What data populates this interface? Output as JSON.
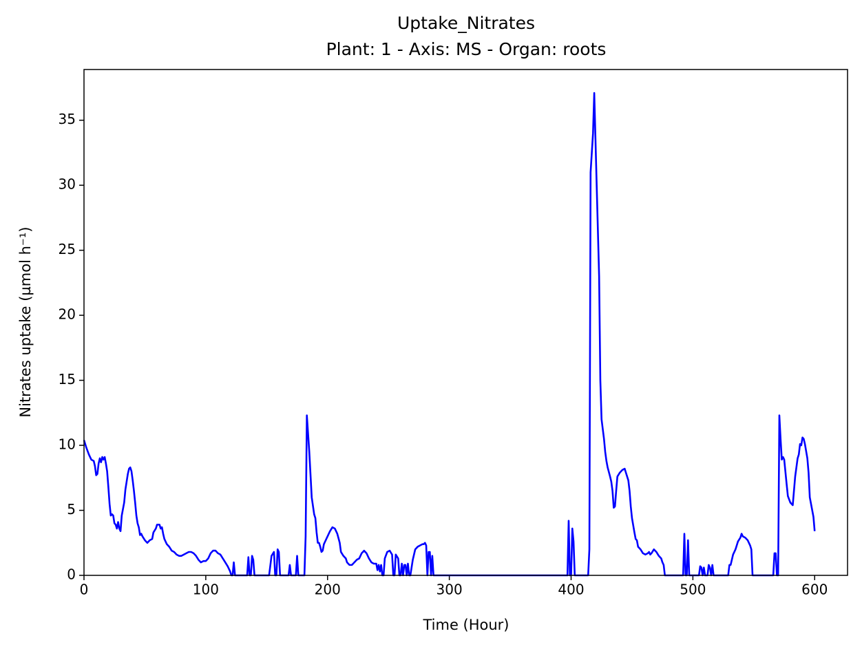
{
  "chart_data": {
    "type": "line",
    "title": "Uptake_Nitrates",
    "subtitle": "Plant: 1 - Axis: MS - Organ: roots",
    "x_label": "Time (Hour)",
    "y_label": "Nitrates uptake (µmol h⁻¹)",
    "color": "#0000ff",
    "xlim": [
      0,
      627
    ],
    "ylim": [
      0,
      38.9
    ],
    "xticks": [
      0,
      100,
      200,
      300,
      400,
      500,
      600
    ],
    "yticks": [
      0,
      5,
      10,
      15,
      20,
      25,
      30,
      35
    ],
    "grid": false,
    "x": [
      0,
      2,
      4,
      6,
      8,
      9,
      10,
      11,
      12,
      13,
      14,
      15,
      16,
      17,
      18,
      19,
      20,
      21,
      22,
      23,
      24,
      25,
      26,
      27,
      28,
      29,
      30,
      31,
      32,
      33,
      34,
      35,
      36,
      37,
      38,
      39,
      40,
      41,
      42,
      43,
      44,
      45,
      46,
      47,
      48,
      50,
      52,
      54,
      56,
      57,
      59,
      60,
      62,
      63,
      64,
      65,
      66,
      68,
      70,
      72,
      74,
      76,
      78,
      80,
      82,
      84,
      86,
      88,
      90,
      92,
      94,
      96,
      98,
      100,
      102,
      104,
      106,
      108,
      110,
      112,
      114,
      116,
      118,
      120,
      121,
      122,
      123,
      124,
      134,
      135,
      136,
      137,
      138,
      139,
      140,
      152,
      154,
      156,
      157,
      158,
      159,
      160,
      161,
      168,
      169,
      170,
      174,
      175,
      176,
      180,
      181,
      182,
      183,
      185,
      187,
      189,
      190,
      191,
      192,
      193,
      194,
      195,
      196,
      197,
      198,
      200,
      202,
      204,
      206,
      208,
      210,
      211,
      213,
      215,
      216,
      218,
      220,
      222,
      224,
      226,
      228,
      230,
      232,
      234,
      236,
      238,
      240,
      241,
      242,
      243,
      244,
      245,
      246,
      247,
      249,
      251,
      253,
      254,
      255,
      256,
      258,
      259,
      260,
      261,
      262,
      263,
      264,
      265,
      266,
      267,
      268,
      270,
      272,
      274,
      276,
      278,
      279,
      280,
      281,
      282,
      283,
      284,
      285,
      286,
      287,
      290,
      397,
      398,
      399,
      400,
      401,
      402,
      403,
      414,
      415,
      416,
      418,
      419,
      421,
      423,
      424,
      425,
      427,
      428,
      429,
      430,
      432,
      433,
      434,
      435,
      436,
      437,
      438,
      440,
      442,
      444,
      445,
      447,
      448,
      449,
      450,
      452,
      453,
      454,
      455,
      457,
      459,
      461,
      463,
      464,
      465,
      466,
      468,
      470,
      472,
      474,
      475,
      476,
      477,
      492,
      493,
      494,
      495,
      496,
      497,
      505,
      506,
      507,
      508,
      509,
      510,
      512,
      513,
      514,
      515,
      516,
      517,
      529,
      530,
      531,
      533,
      535,
      537,
      539,
      540,
      541,
      543,
      545,
      547,
      548,
      549,
      566,
      567,
      568,
      569,
      570,
      571,
      572,
      573,
      574,
      575,
      577,
      578,
      580,
      582,
      584,
      586,
      587,
      588,
      589,
      590,
      591,
      592,
      594,
      595,
      596,
      598,
      599,
      600
    ],
    "values": [
      10.4,
      9.8,
      9.3,
      8.9,
      8.8,
      8.4,
      7.7,
      7.8,
      8.6,
      9.0,
      8.7,
      9.1,
      8.9,
      9.1,
      8.6,
      8.0,
      6.8,
      5.5,
      4.6,
      4.7,
      4.6,
      4.0,
      3.9,
      3.6,
      4.1,
      3.6,
      3.4,
      4.6,
      5.1,
      5.6,
      6.6,
      7.2,
      7.8,
      8.2,
      8.3,
      8.0,
      7.3,
      6.5,
      5.6,
      4.6,
      4.0,
      3.7,
      3.1,
      3.2,
      3.0,
      2.7,
      2.5,
      2.7,
      2.8,
      3.3,
      3.6,
      3.9,
      3.9,
      3.6,
      3.7,
      3.2,
      2.8,
      2.4,
      2.2,
      1.9,
      1.8,
      1.6,
      1.5,
      1.5,
      1.6,
      1.7,
      1.8,
      1.8,
      1.7,
      1.5,
      1.2,
      1.0,
      1.1,
      1.1,
      1.3,
      1.7,
      1.9,
      1.9,
      1.7,
      1.6,
      1.3,
      1.0,
      0.7,
      0.3,
      0,
      0,
      1.0,
      0,
      0,
      1.4,
      0,
      0,
      1.5,
      1.2,
      0,
      0,
      1.5,
      1.8,
      0,
      0,
      2.0,
      1.8,
      0,
      0,
      0.8,
      0,
      0,
      1.5,
      0,
      0,
      0,
      3.0,
      12.3,
      9.5,
      6.0,
      4.7,
      4.4,
      3.3,
      2.5,
      2.5,
      2.2,
      1.8,
      1.9,
      2.4,
      2.6,
      3.0,
      3.4,
      3.7,
      3.6,
      3.2,
      2.5,
      1.8,
      1.5,
      1.3,
      1.0,
      0.8,
      0.8,
      1.0,
      1.2,
      1.3,
      1.7,
      1.9,
      1.7,
      1.3,
      1.0,
      0.9,
      0.9,
      0.4,
      0.8,
      0.3,
      0.8,
      0,
      0,
      1.3,
      1.8,
      1.9,
      1.6,
      0,
      0,
      1.6,
      1.3,
      0,
      0,
      0.9,
      0,
      0.8,
      0.8,
      0,
      0.9,
      0,
      0,
      1.2,
      2.0,
      2.2,
      2.3,
      2.4,
      2.4,
      2.5,
      2.3,
      0,
      1.8,
      1.8,
      0,
      1.5,
      0,
      0,
      0,
      4.2,
      0,
      0,
      3.6,
      2.6,
      0,
      0,
      2.0,
      31,
      34,
      37.1,
      30,
      23,
      15,
      12,
      10.5,
      9.5,
      8.8,
      8.3,
      7.6,
      7.2,
      6.5,
      5.2,
      5.3,
      6.5,
      7.6,
      7.9,
      8.1,
      8.2,
      7.9,
      7.3,
      6.5,
      5.3,
      4.4,
      3.3,
      2.8,
      2.7,
      2.2,
      2.0,
      1.7,
      1.6,
      1.7,
      1.8,
      1.6,
      1.7,
      2.0,
      1.8,
      1.5,
      1.3,
      1.0,
      0.8,
      0,
      0,
      3.2,
      0,
      0,
      2.7,
      0,
      0,
      0.7,
      0.6,
      0,
      0.6,
      0,
      0,
      0.8,
      0.6,
      0,
      0.8,
      0,
      0,
      0.8,
      0.8,
      1.6,
      2.0,
      2.6,
      2.9,
      3.2,
      3.0,
      2.9,
      2.7,
      2.3,
      2.0,
      0,
      0,
      1.7,
      1.7,
      0,
      0,
      12.3,
      10.5,
      8.9,
      9.1,
      8.9,
      7.0,
      6.1,
      5.6,
      5.4,
      7.6,
      9.0,
      9.3,
      10.1,
      10.0,
      10.6,
      10.5,
      10.1,
      9.0,
      7.9,
      6.0,
      5.0,
      4.5,
      3.4
    ]
  }
}
